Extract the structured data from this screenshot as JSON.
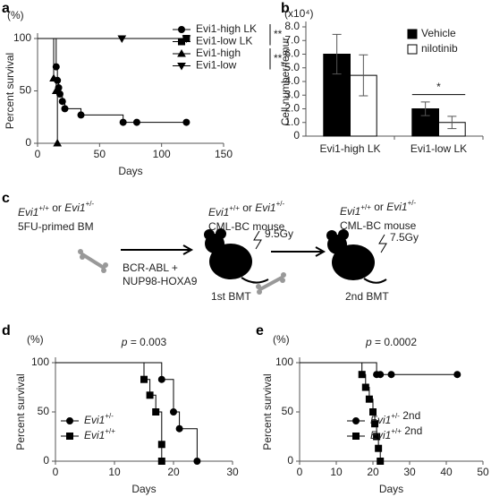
{
  "chart_data": [
    {
      "panel": "a",
      "type": "survival",
      "ylabel": "Percent survival",
      "yunit": "(%)",
      "xlabel": "Days",
      "xlim": [
        0,
        150
      ],
      "xticks": [
        0,
        50,
        100,
        150
      ],
      "ylim": [
        0,
        100
      ],
      "yticks": [
        0,
        50,
        100
      ],
      "legend": "right",
      "series": [
        {
          "name": "Evi1-high LK",
          "color": "#000000",
          "marker": "o",
          "x": [
            0,
            15,
            16,
            17,
            18,
            20,
            22,
            35,
            69,
            80,
            120
          ],
          "values": [
            100,
            73,
            60,
            53,
            47,
            40,
            33,
            27,
            20,
            20,
            20
          ]
        },
        {
          "name": "Evi1-low LK",
          "color": "#000000",
          "marker": "s",
          "x": [
            0,
            120
          ],
          "values": [
            100,
            100
          ]
        },
        {
          "name": "Evi1-high",
          "color": "#000000",
          "marker": "^",
          "x": [
            0,
            13,
            15,
            16
          ],
          "values": [
            100,
            62,
            50,
            0
          ]
        },
        {
          "name": "Evi1-low",
          "color": "#000000",
          "marker": "v",
          "x": [
            0,
            68,
            120
          ],
          "values": [
            100,
            100,
            100
          ]
        }
      ],
      "annotations": [
        "**",
        "**"
      ]
    },
    {
      "panel": "b",
      "type": "bar",
      "ylabel": "Cell number/femur",
      "yunit": "(x10⁴)",
      "categories": [
        "Evi1-high LK",
        "Evi1-low LK"
      ],
      "ylim": [
        0,
        8
      ],
      "yticks": [
        0,
        {
          "value": 1,
          "label": "1.0"
        },
        {
          "value": 2,
          "label": "2.0"
        },
        {
          "value": 3,
          "label": "3.0"
        },
        {
          "value": 4,
          "label": "4.0"
        },
        {
          "value": 5,
          "label": "5.0"
        },
        {
          "value": 6,
          "label": "6.0"
        },
        {
          "value": 7,
          "label": "7.0"
        },
        {
          "value": 8,
          "label": "8.0"
        }
      ],
      "legend": "upper right",
      "series": [
        {
          "name": "Vehicle",
          "color": "#000000",
          "values": [
            6.0,
            2.0
          ],
          "errors": [
            1.45,
            0.5
          ]
        },
        {
          "name": "nilotinib",
          "color": "#ffffff",
          "values": [
            4.45,
            1.0
          ],
          "errors": [
            1.5,
            0.45
          ]
        }
      ],
      "annotations": [
        "*"
      ]
    },
    {
      "panel": "d",
      "type": "survival",
      "ylabel": "Percent survival",
      "yunit": "(%)",
      "xlabel": "Days",
      "xlim": [
        0,
        30
      ],
      "xticks": [
        0,
        10,
        20,
        30
      ],
      "ylim": [
        0,
        100
      ],
      "yticks": [
        0,
        50,
        100
      ],
      "legend": "lower left",
      "subtitle": "p = 0.003",
      "series": [
        {
          "name": "Evi1+/-",
          "color": "#000000",
          "marker": "o",
          "x": [
            0,
            18,
            20,
            21,
            24
          ],
          "values": [
            100,
            83,
            50,
            33,
            0
          ]
        },
        {
          "name": "Evi1+/+",
          "color": "#000000",
          "marker": "s",
          "x": [
            0,
            15,
            16,
            17,
            18,
            18
          ],
          "values": [
            100,
            83,
            67,
            50,
            17,
            0
          ]
        }
      ]
    },
    {
      "panel": "e",
      "type": "survival",
      "ylabel": "Percent survival",
      "yunit": "(%)",
      "xlabel": "Days",
      "xlim": [
        0,
        50
      ],
      "xticks": [
        0,
        10,
        20,
        30,
        40,
        50
      ],
      "ylim": [
        0,
        100
      ],
      "yticks": [
        0,
        50,
        100
      ],
      "legend": "lower right",
      "subtitle": "p = 0.0002",
      "series": [
        {
          "name": "Evi1+/- 2nd",
          "color": "#000000",
          "marker": "o",
          "x": [
            0,
            21,
            22,
            25,
            43
          ],
          "values": [
            100,
            88,
            88,
            88,
            88
          ]
        },
        {
          "name": "Evi1+/+ 2nd",
          "color": "#000000",
          "marker": "s",
          "x": [
            0,
            17,
            18,
            19,
            20,
            20.5,
            21,
            21.5,
            22
          ],
          "values": [
            100,
            88,
            75,
            63,
            50,
            38,
            25,
            13,
            0
          ]
        }
      ]
    }
  ],
  "diagram": {
    "panel": "c",
    "donor_genotype": "Evi1+/+ or Evi1+/-",
    "donor": "5FU-primed BM",
    "transduction": [
      "BCR-ABL +",
      "NUP98-HOXA9"
    ],
    "recipient1_genotype": "Evi1+/+ or Evi1+/-",
    "recipient1": "CML-BC mouse",
    "dose1": "9.5Gy",
    "step1": "1st BMT",
    "recipient2_genotype": "Evi1+/+ or Evi1+/-",
    "recipient2": "CML-BC mouse",
    "dose2": "7.5Gy",
    "step2": "2nd BMT"
  }
}
